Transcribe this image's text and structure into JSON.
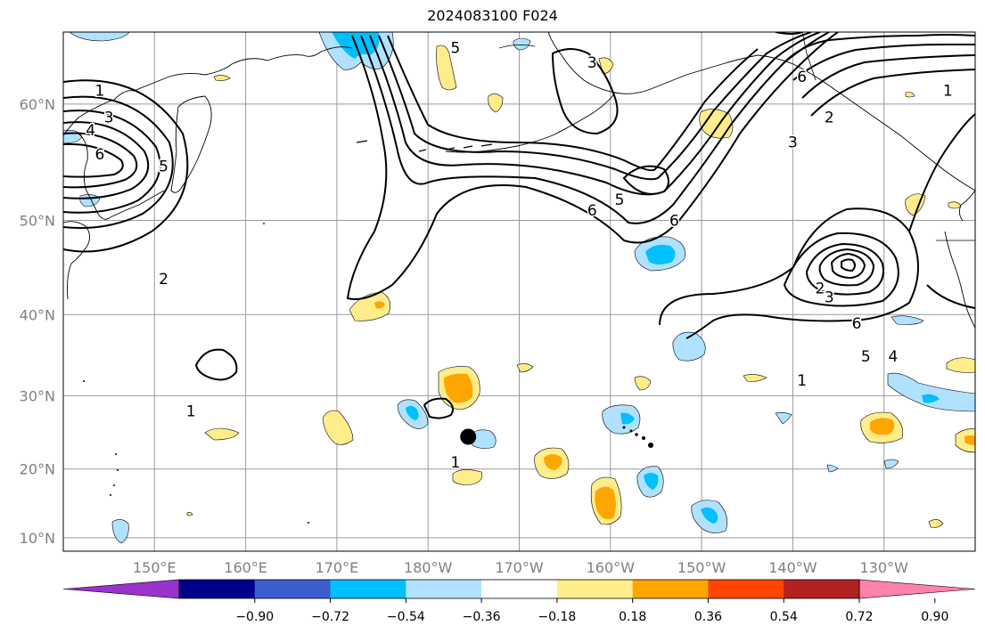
{
  "title": "2024083100 F024",
  "map": {
    "lat_labels": [
      "60°N",
      "50°N",
      "40°N",
      "30°N",
      "20°N",
      "10°N"
    ],
    "lon_labels": [
      "150°E",
      "160°E",
      "170°E",
      "180°W",
      "170°W",
      "160°W",
      "150°W",
      "140°W",
      "130°W"
    ],
    "lat_values": [
      60,
      50,
      40,
      30,
      20,
      10
    ],
    "lon_values": [
      150,
      160,
      170,
      180,
      190,
      200,
      210,
      220,
      230
    ],
    "extent": {
      "lon_min": 140,
      "lon_max": 240,
      "lat_min": 8,
      "lat_max": 65
    },
    "grid": true,
    "contour_labels": [
      {
        "text": "1",
        "lon": 144,
        "lat": 61
      },
      {
        "text": "3",
        "lon": 145,
        "lat": 59
      },
      {
        "text": "4",
        "lon": 143,
        "lat": 58
      },
      {
        "text": "6",
        "lon": 144,
        "lat": 56
      },
      {
        "text": "5",
        "lon": 151,
        "lat": 55
      },
      {
        "text": "2",
        "lon": 151,
        "lat": 44
      },
      {
        "text": "5",
        "lon": 183,
        "lat": 64
      },
      {
        "text": "3",
        "lon": 198,
        "lat": 63
      },
      {
        "text": "6",
        "lon": 198,
        "lat": 51
      },
      {
        "text": "5",
        "lon": 201,
        "lat": 52
      },
      {
        "text": "6",
        "lon": 207,
        "lat": 50
      },
      {
        "text": "6",
        "lon": 221,
        "lat": 62
      },
      {
        "text": "3",
        "lon": 220,
        "lat": 57
      },
      {
        "text": "2",
        "lon": 224,
        "lat": 59
      },
      {
        "text": "1",
        "lon": 237,
        "lat": 61
      },
      {
        "text": "2",
        "lon": 223,
        "lat": 43
      },
      {
        "text": "3",
        "lon": 224,
        "lat": 42
      },
      {
        "text": "6",
        "lon": 227,
        "lat": 39
      },
      {
        "text": "5",
        "lon": 228,
        "lat": 35
      },
      {
        "text": "4",
        "lon": 231,
        "lat": 35
      },
      {
        "text": "1",
        "lon": 221,
        "lat": 32
      },
      {
        "text": "1",
        "lon": 154,
        "lat": 28
      },
      {
        "text": "1",
        "lon": 183,
        "lat": 21
      }
    ],
    "marker": {
      "lon": 184.4,
      "lat": 24.5
    }
  },
  "colorbar": {
    "ticks": [
      "−0.90",
      "−0.72",
      "−0.54",
      "−0.36",
      "−0.18",
      "0.18",
      "0.36",
      "0.54",
      "0.72",
      "0.90"
    ],
    "colors": [
      "#9a32cd",
      "#00008b",
      "#3a5fcd",
      "#00bfff",
      "#b0e2ff",
      "#ffffff",
      "#ffec8b",
      "#ffa500",
      "#ff4500",
      "#b22222",
      "#ff82ab"
    ]
  }
}
